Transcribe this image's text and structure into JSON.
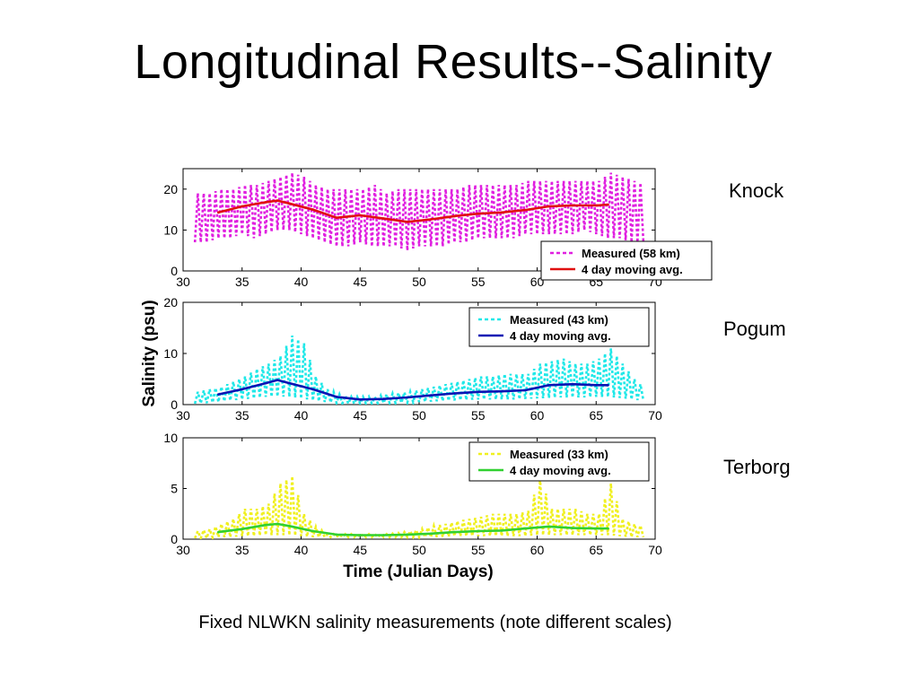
{
  "slide": {
    "title": "Longitudinal Results--Salinity",
    "caption": "Fixed NLWKN salinity measurements (note different scales)"
  },
  "stations": [
    {
      "name": "Knock"
    },
    {
      "name": "Pogum"
    },
    {
      "name": "Terborg"
    }
  ],
  "chart_data": [
    {
      "type": "line",
      "station": "Knock",
      "xlim": [
        30,
        70
      ],
      "ylim": [
        0,
        25
      ],
      "xticks": [
        30,
        35,
        40,
        45,
        50,
        55,
        60,
        65,
        70
      ],
      "yticks": [
        0,
        10,
        20
      ],
      "xlabel": "",
      "ylabel": "",
      "legend_position": "lower-right",
      "series": [
        {
          "name": "Measured (58 km)",
          "style": "dashed",
          "color": "#e020e0",
          "x": [
            31,
            32,
            33,
            34,
            35,
            36,
            37,
            38,
            39,
            40,
            41,
            42,
            43,
            44,
            45,
            46,
            47,
            48,
            49,
            50,
            51,
            52,
            53,
            54,
            55,
            56,
            57,
            58,
            59,
            60,
            61,
            62,
            63,
            64,
            65,
            66,
            67,
            68,
            69
          ],
          "lows": [
            7,
            7,
            8,
            8,
            9,
            8,
            9,
            10,
            10,
            9,
            8,
            7,
            6,
            6,
            7,
            6,
            6,
            6,
            5,
            6,
            6,
            6,
            7,
            7,
            8,
            8,
            8,
            8,
            9,
            9,
            9,
            9,
            9,
            10,
            9,
            8,
            8,
            7,
            7
          ],
          "highs": [
            19,
            19,
            20,
            20,
            21,
            21,
            22,
            23,
            24,
            23,
            21,
            20,
            20,
            20,
            20,
            21,
            19,
            20,
            20,
            20,
            20,
            20,
            20,
            21,
            21,
            21,
            21,
            21,
            22,
            22,
            22,
            22,
            22,
            22,
            22,
            24,
            23,
            22,
            21
          ]
        },
        {
          "name": "4 day moving avg.",
          "style": "solid",
          "color": "#e01010",
          "x": [
            33,
            35,
            37,
            38,
            39,
            41,
            43,
            45,
            47,
            49,
            51,
            53,
            55,
            57,
            59,
            61,
            63,
            65,
            66
          ],
          "y": [
            14.3,
            15.8,
            16.8,
            17.2,
            16.5,
            15.0,
            13.0,
            13.6,
            12.8,
            12.0,
            12.6,
            13.4,
            14.0,
            14.3,
            14.9,
            15.8,
            16.0,
            16.0,
            16.2
          ]
        }
      ]
    },
    {
      "type": "line",
      "station": "Pogum",
      "xlim": [
        30,
        70
      ],
      "ylim": [
        0,
        20
      ],
      "xticks": [
        30,
        35,
        40,
        45,
        50,
        55,
        60,
        65,
        70
      ],
      "yticks": [
        0,
        10,
        20
      ],
      "xlabel": "",
      "ylabel": "Salinity (psu)",
      "legend_position": "top-right",
      "series": [
        {
          "name": "Measured (43 km)",
          "style": "dashed",
          "color": "#20e8e8",
          "x": [
            31,
            32,
            33,
            34,
            35,
            36,
            37,
            38,
            39,
            40,
            41,
            42,
            43,
            44,
            45,
            46,
            47,
            48,
            49,
            50,
            51,
            52,
            53,
            54,
            55,
            56,
            57,
            58,
            59,
            60,
            61,
            62,
            63,
            64,
            65,
            66,
            67,
            68,
            69
          ],
          "lows": [
            0.2,
            0.3,
            0.5,
            0.8,
            1.0,
            1.2,
            1.5,
            1.6,
            1.5,
            1.2,
            0.8,
            0.5,
            0.3,
            0.2,
            0.2,
            0.2,
            0.3,
            0.3,
            0.4,
            0.5,
            0.6,
            0.7,
            0.8,
            0.9,
            1.0,
            1.0,
            1.0,
            1.0,
            1.1,
            1.2,
            1.3,
            1.4,
            1.4,
            1.4,
            1.5,
            1.5,
            1.3,
            1.0,
            0.8
          ],
          "highs": [
            2.5,
            3.0,
            3.5,
            4.5,
            5.5,
            7.0,
            8.0,
            9.5,
            13.5,
            12.0,
            5.5,
            3.0,
            2.0,
            1.5,
            1.5,
            1.5,
            2.0,
            2.3,
            2.5,
            3.0,
            3.5,
            4.0,
            4.5,
            5.0,
            5.5,
            5.5,
            6.0,
            6.0,
            6.0,
            8.0,
            8.5,
            9.0,
            8.0,
            8.0,
            9.0,
            11.0,
            8.0,
            5.0,
            3.0
          ]
        },
        {
          "name": "4 day moving avg.",
          "style": "solid",
          "color": "#0a14b4",
          "x": [
            33,
            35,
            37,
            38,
            39,
            41,
            43,
            45,
            47,
            49,
            51,
            53,
            55,
            57,
            59,
            61,
            63,
            65,
            66
          ],
          "y": [
            2.0,
            3.0,
            4.2,
            4.8,
            4.2,
            3.0,
            1.5,
            1.0,
            1.1,
            1.4,
            1.8,
            2.2,
            2.5,
            2.6,
            2.8,
            3.8,
            4.0,
            3.8,
            3.8
          ]
        }
      ]
    },
    {
      "type": "line",
      "station": "Terborg",
      "xlim": [
        30,
        70
      ],
      "ylim": [
        0,
        10
      ],
      "xticks": [
        30,
        35,
        40,
        45,
        50,
        55,
        60,
        65,
        70
      ],
      "yticks": [
        0,
        5,
        10
      ],
      "xlabel": "Time (Julian Days)",
      "ylabel": "",
      "legend_position": "top-right",
      "series": [
        {
          "name": "Measured (33 km)",
          "style": "dashed",
          "color": "#f0f020",
          "x": [
            31,
            32,
            33,
            34,
            35,
            36,
            37,
            38,
            39,
            40,
            41,
            42,
            43,
            44,
            45,
            46,
            47,
            48,
            49,
            50,
            51,
            52,
            53,
            54,
            55,
            56,
            57,
            58,
            59,
            60,
            61,
            62,
            63,
            64,
            65,
            66,
            67,
            68,
            69
          ],
          "lows": [
            0.1,
            0.1,
            0.2,
            0.2,
            0.3,
            0.3,
            0.4,
            0.4,
            0.4,
            0.3,
            0.2,
            0.2,
            0.2,
            0.2,
            0.2,
            0.2,
            0.2,
            0.2,
            0.2,
            0.2,
            0.2,
            0.2,
            0.3,
            0.3,
            0.3,
            0.3,
            0.3,
            0.3,
            0.3,
            0.4,
            0.4,
            0.4,
            0.4,
            0.4,
            0.4,
            0.4,
            0.3,
            0.2,
            0.2
          ],
          "highs": [
            0.8,
            1.0,
            1.5,
            2.0,
            3.0,
            3.0,
            3.5,
            5.5,
            6.2,
            2.5,
            1.2,
            0.5,
            0.5,
            0.5,
            0.5,
            0.5,
            0.5,
            0.6,
            0.8,
            1.0,
            1.3,
            1.5,
            1.8,
            2.0,
            2.2,
            2.5,
            2.5,
            2.5,
            2.8,
            6.0,
            3.0,
            3.0,
            3.0,
            2.5,
            2.5,
            5.5,
            2.0,
            1.5,
            1.2
          ]
        },
        {
          "name": "4 day moving avg.",
          "style": "solid",
          "color": "#30d030",
          "x": [
            33,
            35,
            37,
            38,
            39,
            41,
            43,
            45,
            47,
            49,
            51,
            53,
            55,
            57,
            59,
            61,
            63,
            65,
            66
          ],
          "y": [
            0.7,
            1.0,
            1.4,
            1.5,
            1.3,
            0.8,
            0.45,
            0.4,
            0.4,
            0.45,
            0.55,
            0.7,
            0.8,
            0.85,
            1.05,
            1.25,
            1.1,
            1.05,
            1.05
          ]
        }
      ]
    }
  ]
}
